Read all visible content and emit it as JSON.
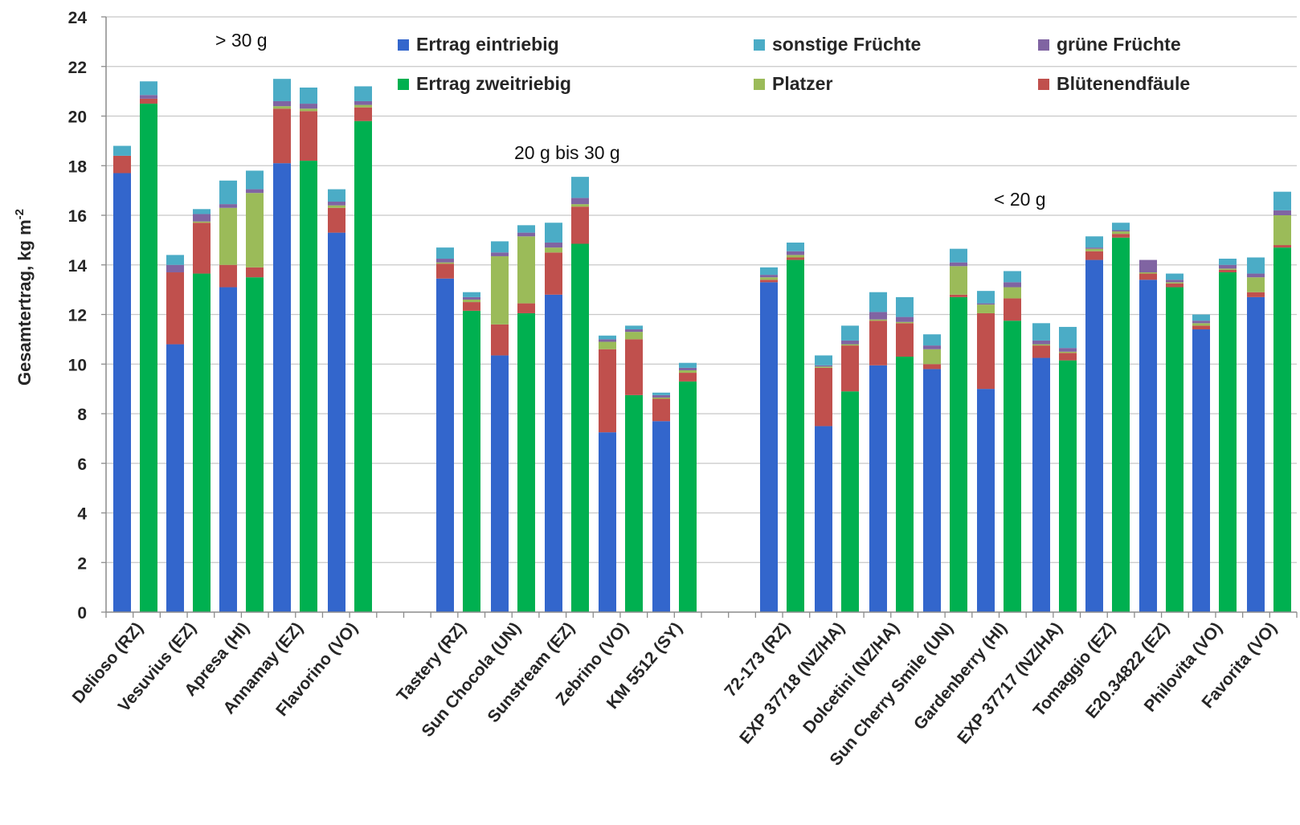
{
  "chart_data": {
    "type": "bar",
    "stacked": true,
    "ylabel_main": "Gesamtertrag,  kg m",
    "ylabel_sup": "-2",
    "ylim": [
      0,
      24
    ],
    "yticks": [
      0,
      2,
      4,
      6,
      8,
      10,
      12,
      14,
      16,
      18,
      20,
      22,
      24
    ],
    "grid": true,
    "legend_position": "top",
    "colors": {
      "Ertrag eintriebig": "#3366cc",
      "Ertrag zweitriebig": "#00b050",
      "Blütenendfäule": "#c0504d",
      "Platzer": "#9bbb59",
      "grüne Früchte": "#8064a2",
      "sonstige Früchte": "#4bacc6"
    },
    "legend": [
      {
        "name": "Ertrag eintriebig",
        "key": "Ertrag eintriebig"
      },
      {
        "name": "sonstige Früchte",
        "key": "sonstige Früchte"
      },
      {
        "name": "grüne Früchte",
        "key": "grüne Früchte"
      },
      {
        "name": "Ertrag zweitriebig",
        "key": "Ertrag zweitriebig"
      },
      {
        "name": "Platzer",
        "key": "Platzer"
      },
      {
        "name": "Blütenendfäule",
        "key": "Blütenendfäule"
      }
    ],
    "groups": [
      {
        "label": "> 30 g"
      },
      {
        "label": "20 g bis 30 g"
      },
      {
        "label": "< 20 g"
      }
    ],
    "categories": [
      "Delioso (RZ)",
      "Vesuvius (EZ)",
      "Apresa (HI)",
      "Annamay (EZ)",
      "Flavorino (VO)",
      "Tastery (RZ)",
      "Sun Chocola (UN)",
      "Sunstream (EZ)",
      "Zebrino (VO)",
      "KM 5512 (SY)",
      "72-173 (RZ)",
      "EXP 37718 (NZ/HA)",
      "Dolcetini (NZ/HA)",
      "Sun Cherry Smile (UN)",
      "Gardenberry (HI)",
      "EXP 37717 (NZ/HA)",
      "Tomaggio (EZ)",
      "E20.34822 (EZ)",
      "Philovita (VO)",
      "Favorita (VO)"
    ],
    "bars": [
      {
        "category": 0,
        "type": "Ertrag eintriebig",
        "yield": 17.7,
        "bef": 0.7,
        "platzer": 0.0,
        "gruen": 0.0,
        "sonstige": 0.4
      },
      {
        "category": 0,
        "type": "Ertrag zweitriebig",
        "yield": 20.5,
        "bef": 0.2,
        "platzer": 0.0,
        "gruen": 0.15,
        "sonstige": 0.55
      },
      {
        "category": 1,
        "type": "Ertrag eintriebig",
        "yield": 10.8,
        "bef": 2.9,
        "platzer": 0.0,
        "gruen": 0.3,
        "sonstige": 0.4
      },
      {
        "category": 1,
        "type": "Ertrag zweitriebig",
        "yield": 13.65,
        "bef": 2.05,
        "platzer": 0.05,
        "gruen": 0.3,
        "sonstige": 0.2
      },
      {
        "category": 2,
        "type": "Ertrag eintriebig",
        "yield": 13.1,
        "bef": 0.9,
        "platzer": 2.3,
        "gruen": 0.15,
        "sonstige": 0.95
      },
      {
        "category": 2,
        "type": "Ertrag zweitriebig",
        "yield": 13.5,
        "bef": 0.4,
        "platzer": 3.0,
        "gruen": 0.15,
        "sonstige": 0.75
      },
      {
        "category": 3,
        "type": "Ertrag eintriebig",
        "yield": 18.1,
        "bef": 2.2,
        "platzer": 0.1,
        "gruen": 0.2,
        "sonstige": 0.9
      },
      {
        "category": 3,
        "type": "Ertrag zweitriebig",
        "yield": 18.2,
        "bef": 2.0,
        "platzer": 0.1,
        "gruen": 0.2,
        "sonstige": 0.65
      },
      {
        "category": 4,
        "type": "Ertrag eintriebig",
        "yield": 15.3,
        "bef": 1.0,
        "platzer": 0.1,
        "gruen": 0.15,
        "sonstige": 0.5
      },
      {
        "category": 4,
        "type": "Ertrag zweitriebig",
        "yield": 19.8,
        "bef": 0.55,
        "platzer": 0.1,
        "gruen": 0.15,
        "sonstige": 0.6
      },
      {
        "category": 5,
        "type": "Ertrag eintriebig",
        "yield": 13.45,
        "bef": 0.6,
        "platzer": 0.05,
        "gruen": 0.15,
        "sonstige": 0.45
      },
      {
        "category": 5,
        "type": "Ertrag zweitriebig",
        "yield": 12.15,
        "bef": 0.35,
        "platzer": 0.1,
        "gruen": 0.1,
        "sonstige": 0.2
      },
      {
        "category": 6,
        "type": "Ertrag eintriebig",
        "yield": 10.35,
        "bef": 1.25,
        "platzer": 2.75,
        "gruen": 0.15,
        "sonstige": 0.45
      },
      {
        "category": 6,
        "type": "Ertrag zweitriebig",
        "yield": 12.05,
        "bef": 0.4,
        "platzer": 2.7,
        "gruen": 0.15,
        "sonstige": 0.3
      },
      {
        "category": 7,
        "type": "Ertrag eintriebig",
        "yield": 12.8,
        "bef": 1.7,
        "platzer": 0.2,
        "gruen": 0.2,
        "sonstige": 0.8
      },
      {
        "category": 7,
        "type": "Ertrag zweitriebig",
        "yield": 14.85,
        "bef": 1.5,
        "platzer": 0.1,
        "gruen": 0.25,
        "sonstige": 0.85
      },
      {
        "category": 8,
        "type": "Ertrag eintriebig",
        "yield": 7.25,
        "bef": 3.35,
        "platzer": 0.3,
        "gruen": 0.1,
        "sonstige": 0.15
      },
      {
        "category": 8,
        "type": "Ertrag zweitriebig",
        "yield": 8.75,
        "bef": 2.25,
        "platzer": 0.3,
        "gruen": 0.1,
        "sonstige": 0.15
      },
      {
        "category": 9,
        "type": "Ertrag eintriebig",
        "yield": 7.7,
        "bef": 0.9,
        "platzer": 0.05,
        "gruen": 0.1,
        "sonstige": 0.1
      },
      {
        "category": 9,
        "type": "Ertrag zweitriebig",
        "yield": 9.3,
        "bef": 0.35,
        "platzer": 0.1,
        "gruen": 0.1,
        "sonstige": 0.2
      },
      {
        "category": 10,
        "type": "Ertrag eintriebig",
        "yield": 13.3,
        "bef": 0.1,
        "platzer": 0.1,
        "gruen": 0.1,
        "sonstige": 0.3
      },
      {
        "category": 10,
        "type": "Ertrag zweitriebig",
        "yield": 14.2,
        "bef": 0.1,
        "platzer": 0.1,
        "gruen": 0.15,
        "sonstige": 0.35
      },
      {
        "category": 11,
        "type": "Ertrag eintriebig",
        "yield": 7.5,
        "bef": 2.35,
        "platzer": 0.05,
        "gruen": 0.05,
        "sonstige": 0.4
      },
      {
        "category": 11,
        "type": "Ertrag zweitriebig",
        "yield": 8.9,
        "bef": 1.85,
        "platzer": 0.05,
        "gruen": 0.15,
        "sonstige": 0.6
      },
      {
        "category": 12,
        "type": "Ertrag eintriebig",
        "yield": 9.95,
        "bef": 1.8,
        "platzer": 0.05,
        "gruen": 0.3,
        "sonstige": 0.8
      },
      {
        "category": 12,
        "type": "Ertrag zweitriebig",
        "yield": 10.3,
        "bef": 1.35,
        "platzer": 0.05,
        "gruen": 0.2,
        "sonstige": 0.8
      },
      {
        "category": 13,
        "type": "Ertrag eintriebig",
        "yield": 9.8,
        "bef": 0.2,
        "platzer": 0.6,
        "gruen": 0.15,
        "sonstige": 0.45
      },
      {
        "category": 13,
        "type": "Ertrag zweitriebig",
        "yield": 12.7,
        "bef": 0.1,
        "platzer": 1.15,
        "gruen": 0.15,
        "sonstige": 0.55
      },
      {
        "category": 14,
        "type": "Ertrag eintriebig",
        "yield": 9.0,
        "bef": 3.05,
        "platzer": 0.35,
        "gruen": 0.05,
        "sonstige": 0.5
      },
      {
        "category": 14,
        "type": "Ertrag zweitriebig",
        "yield": 11.75,
        "bef": 0.9,
        "platzer": 0.45,
        "gruen": 0.2,
        "sonstige": 0.45
      },
      {
        "category": 15,
        "type": "Ertrag eintriebig",
        "yield": 10.25,
        "bef": 0.5,
        "platzer": 0.05,
        "gruen": 0.15,
        "sonstige": 0.7
      },
      {
        "category": 15,
        "type": "Ertrag zweitriebig",
        "yield": 10.15,
        "bef": 0.3,
        "platzer": 0.05,
        "gruen": 0.15,
        "sonstige": 0.85
      },
      {
        "category": 16,
        "type": "Ertrag eintriebig",
        "yield": 14.2,
        "bef": 0.35,
        "platzer": 0.1,
        "gruen": 0.05,
        "sonstige": 0.45
      },
      {
        "category": 16,
        "type": "Ertrag zweitriebig",
        "yield": 15.1,
        "bef": 0.15,
        "platzer": 0.1,
        "gruen": 0.05,
        "sonstige": 0.3
      },
      {
        "category": 17,
        "type": "Ertrag eintriebig",
        "yield": 13.4,
        "bef": 0.25,
        "platzer": 0.05,
        "gruen": 0.5,
        "sonstige": 0.0
      },
      {
        "category": 17,
        "type": "Ertrag zweitriebig",
        "yield": 13.1,
        "bef": 0.15,
        "platzer": 0.05,
        "gruen": 0.1,
        "sonstige": 0.25
      },
      {
        "category": 18,
        "type": "Ertrag eintriebig",
        "yield": 11.4,
        "bef": 0.15,
        "platzer": 0.1,
        "gruen": 0.1,
        "sonstige": 0.25
      },
      {
        "category": 18,
        "type": "Ertrag zweitriebig",
        "yield": 13.7,
        "bef": 0.1,
        "platzer": 0.05,
        "gruen": 0.15,
        "sonstige": 0.25
      },
      {
        "category": 19,
        "type": "Ertrag eintriebig",
        "yield": 12.7,
        "bef": 0.2,
        "platzer": 0.6,
        "gruen": 0.15,
        "sonstige": 0.65
      },
      {
        "category": 19,
        "type": "Ertrag zweitriebig",
        "yield": 14.7,
        "bef": 0.1,
        "platzer": 1.2,
        "gruen": 0.2,
        "sonstige": 0.75
      }
    ]
  }
}
